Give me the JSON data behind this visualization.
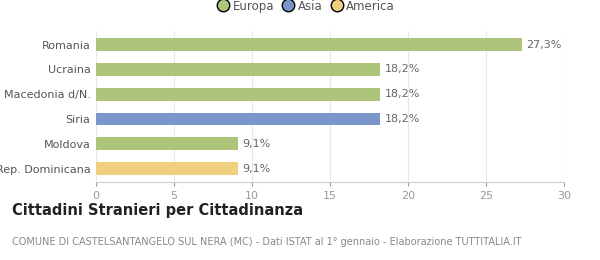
{
  "categories": [
    "Rep. Dominicana",
    "Moldova",
    "Siria",
    "Macedonia d/N.",
    "Ucraina",
    "Romania"
  ],
  "values": [
    9.1,
    9.1,
    18.2,
    18.2,
    18.2,
    27.3
  ],
  "colors": [
    "#f0d080",
    "#adc47a",
    "#7b96c8",
    "#adc47a",
    "#adc47a",
    "#adc47a"
  ],
  "labels": [
    "9,1%",
    "9,1%",
    "18,2%",
    "18,2%",
    "18,2%",
    "27,3%"
  ],
  "continent_colors": {
    "Europa": "#adc47a",
    "Asia": "#7b96c8",
    "America": "#f0d080"
  },
  "xlim": [
    0,
    30
  ],
  "xticks": [
    0,
    5,
    10,
    15,
    20,
    25,
    30
  ],
  "title": "Cittadini Stranieri per Cittadinanza",
  "subtitle": "COMUNE DI CASTELSANTANGELO SUL NERA (MC) - Dati ISTAT al 1° gennaio - Elaborazione TUTTITALIA.IT",
  "bg_color": "#ffffff",
  "bar_height": 0.52,
  "label_fontsize": 8,
  "title_fontsize": 10.5,
  "subtitle_fontsize": 7,
  "tick_fontsize": 8,
  "legend_fontsize": 8.5
}
